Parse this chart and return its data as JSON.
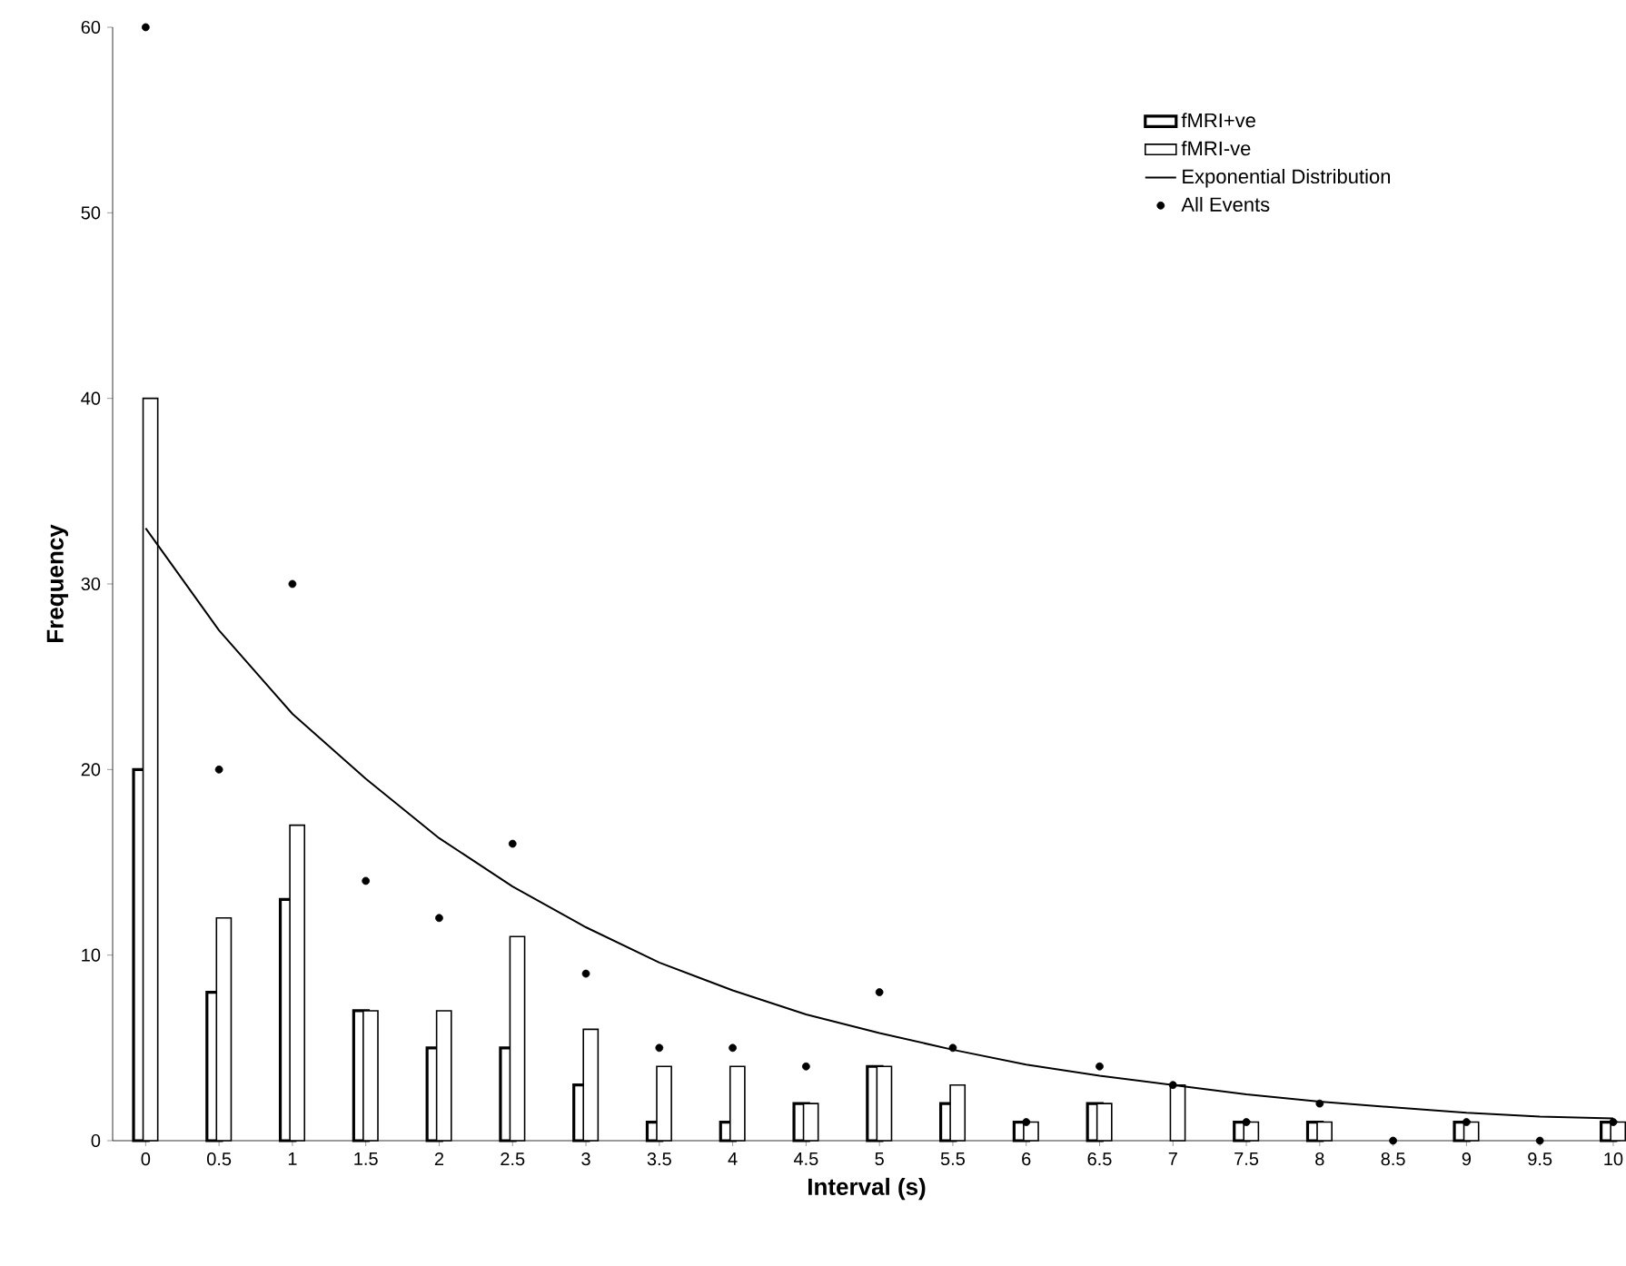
{
  "chart_data": {
    "type": "bar",
    "xlabel": "Interval (s)",
    "ylabel": "Frequency",
    "categories": [
      "0",
      "0.5",
      "1",
      "1.5",
      "2",
      "2.5",
      "3",
      "3.5",
      "4",
      "4.5",
      "5",
      "5.5",
      "6",
      "6.5",
      "7",
      "7.5",
      "8",
      "8.5",
      "9",
      "9.5",
      "10"
    ],
    "series": [
      {
        "name": "fMRI+ve",
        "color": "#ffffff",
        "values": [
          20,
          8,
          13,
          7,
          5,
          5,
          3,
          1,
          1,
          2,
          4,
          2,
          1,
          2,
          null,
          1,
          1,
          null,
          1,
          null,
          1
        ]
      },
      {
        "name": "fMRI-ve",
        "color": "#ffffff",
        "values": [
          40,
          12,
          17,
          7,
          7,
          11,
          6,
          4,
          4,
          2,
          4,
          3,
          1,
          2,
          3,
          1,
          1,
          null,
          1,
          null,
          1
        ]
      },
      {
        "name": "Exponential Distribution",
        "type": "line",
        "color": "#000000",
        "line_style": "solid",
        "marker": "none",
        "values": [
          33,
          27.5,
          23,
          19.5,
          16.3,
          13.7,
          11.5,
          9.6,
          8.1,
          6.8,
          5.8,
          4.9,
          4.1,
          3.5,
          3.0,
          2.5,
          2.1,
          1.8,
          1.5,
          1.3,
          1.2
        ]
      },
      {
        "name": "All Events",
        "type": "scatter",
        "color": "#000000",
        "marker": "circle",
        "values": [
          60,
          20,
          30,
          14,
          12,
          16,
          9,
          5,
          5,
          4,
          8,
          5,
          1,
          4,
          3,
          1,
          2,
          0,
          1,
          0,
          1
        ]
      }
    ],
    "ylim": [
      0,
      60
    ],
    "yticks": [
      0,
      10,
      20,
      30,
      40,
      50,
      60
    ],
    "legend": "top right",
    "grid": false
  }
}
